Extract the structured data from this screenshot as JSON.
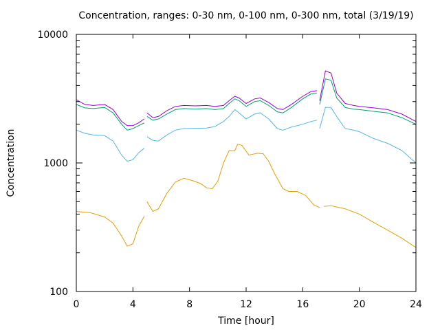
{
  "chart_data": {
    "type": "line",
    "title": "Concentration, ranges: 0-30 nm, 0-100 nm, 0-300 nm, total (3/19/19)",
    "xlabel": "Time [hour]",
    "ylabel": "Concentration",
    "xlim": [
      0,
      24
    ],
    "ylim": [
      100,
      10000
    ],
    "yscale": "log",
    "grid": false,
    "xticks": [
      0,
      4,
      8,
      12,
      16,
      20,
      24
    ],
    "xtick_labels": [
      "0",
      "4",
      "8",
      "12",
      "16",
      "20",
      "24"
    ],
    "yticks": [
      100,
      1000,
      10000
    ],
    "ytick_labels": [
      "100",
      "1000",
      "10000"
    ],
    "series": [
      {
        "color": "#e69f00",
        "segments": [
          [
            [
              0,
              420
            ],
            [
              1,
              410
            ],
            [
              2,
              380
            ],
            [
              2.6,
              340
            ],
            [
              3.2,
              270
            ],
            [
              3.6,
              225
            ],
            [
              4,
              235
            ],
            [
              4.4,
              320
            ],
            [
              4.8,
              385
            ]
          ],
          [
            [
              5,
              500
            ],
            [
              5.4,
              420
            ],
            [
              5.8,
              440
            ],
            [
              6.4,
              580
            ],
            [
              7,
              710
            ],
            [
              7.6,
              760
            ],
            [
              8.2,
              730
            ],
            [
              8.8,
              690
            ],
            [
              9.2,
              640
            ],
            [
              9.6,
              630
            ],
            [
              10,
              720
            ],
            [
              10.4,
              1000
            ],
            [
              10.8,
              1250
            ],
            [
              11.2,
              1240
            ],
            [
              11.4,
              1400
            ],
            [
              11.7,
              1370
            ],
            [
              12.2,
              1150
            ],
            [
              12.8,
              1190
            ],
            [
              13.2,
              1180
            ],
            [
              13.6,
              1030
            ],
            [
              14,
              830
            ],
            [
              14.6,
              630
            ],
            [
              15,
              600
            ],
            [
              15.6,
              600
            ],
            [
              16.2,
              560
            ],
            [
              16.8,
              470
            ],
            [
              17.2,
              450
            ]
          ],
          [
            [
              17.5,
              460
            ],
            [
              18,
              465
            ],
            [
              19,
              440
            ],
            [
              20,
              400
            ],
            [
              21,
              345
            ],
            [
              22,
              300
            ],
            [
              23,
              260
            ],
            [
              24,
              220
            ]
          ]
        ]
      },
      {
        "color": "#56b4e9",
        "segments": [
          [
            [
              0,
              1800
            ],
            [
              0.6,
              1700
            ],
            [
              1.2,
              1650
            ],
            [
              2,
              1630
            ],
            [
              2.6,
              1480
            ],
            [
              3.2,
              1150
            ],
            [
              3.6,
              1030
            ],
            [
              4,
              1060
            ],
            [
              4.4,
              1200
            ],
            [
              4.8,
              1300
            ]
          ],
          [
            [
              5,
              1600
            ],
            [
              5.4,
              1500
            ],
            [
              5.8,
              1480
            ],
            [
              6.4,
              1650
            ],
            [
              7,
              1800
            ],
            [
              7.6,
              1850
            ],
            [
              8.4,
              1860
            ],
            [
              9.2,
              1870
            ],
            [
              9.8,
              1920
            ],
            [
              10.4,
              2100
            ],
            [
              10.8,
              2300
            ],
            [
              11.2,
              2600
            ],
            [
              11.5,
              2450
            ],
            [
              12,
              2200
            ],
            [
              12.6,
              2400
            ],
            [
              13,
              2450
            ],
            [
              13.6,
              2200
            ],
            [
              14.2,
              1850
            ],
            [
              14.6,
              1800
            ],
            [
              15.2,
              1900
            ],
            [
              16,
              2000
            ],
            [
              16.6,
              2100
            ],
            [
              17,
              2150
            ]
          ],
          [
            [
              17.2,
              1850
            ],
            [
              17.6,
              2700
            ],
            [
              18,
              2700
            ],
            [
              18.4,
              2300
            ],
            [
              19,
              1850
            ],
            [
              19.6,
              1800
            ],
            [
              20,
              1750
            ],
            [
              21,
              1550
            ],
            [
              22,
              1420
            ],
            [
              23,
              1250
            ],
            [
              24,
              1000
            ]
          ]
        ]
      },
      {
        "color": "#009e73",
        "segments": [
          [
            [
              0,
              2850
            ],
            [
              0.6,
              2680
            ],
            [
              1.2,
              2650
            ],
            [
              2,
              2700
            ],
            [
              2.6,
              2450
            ],
            [
              3.2,
              2000
            ],
            [
              3.6,
              1800
            ],
            [
              4,
              1850
            ],
            [
              4.4,
              1950
            ],
            [
              4.8,
              2050
            ]
          ],
          [
            [
              5,
              2300
            ],
            [
              5.4,
              2150
            ],
            [
              5.8,
              2200
            ],
            [
              6.4,
              2400
            ],
            [
              7,
              2600
            ],
            [
              7.6,
              2650
            ],
            [
              8.4,
              2620
            ],
            [
              9.2,
              2650
            ],
            [
              9.8,
              2600
            ],
            [
              10.4,
              2650
            ],
            [
              10.8,
              2900
            ],
            [
              11.2,
              3150
            ],
            [
              11.5,
              3050
            ],
            [
              12,
              2750
            ],
            [
              12.6,
              3000
            ],
            [
              13,
              3050
            ],
            [
              13.6,
              2800
            ],
            [
              14.2,
              2500
            ],
            [
              14.6,
              2450
            ],
            [
              15.2,
              2700
            ],
            [
              16,
              3150
            ],
            [
              16.6,
              3450
            ],
            [
              17,
              3500
            ]
          ],
          [
            [
              17.2,
              2850
            ],
            [
              17.6,
              4500
            ],
            [
              18,
              4400
            ],
            [
              18.4,
              3200
            ],
            [
              19,
              2700
            ],
            [
              19.6,
              2620
            ],
            [
              20,
              2600
            ],
            [
              21,
              2520
            ],
            [
              22,
              2450
            ],
            [
              23,
              2250
            ],
            [
              24,
              2000
            ]
          ]
        ]
      },
      {
        "color": "#9400d3",
        "segments": [
          [
            [
              0,
              3100
            ],
            [
              0.6,
              2850
            ],
            [
              1.2,
              2800
            ],
            [
              2,
              2850
            ],
            [
              2.6,
              2600
            ],
            [
              3.2,
              2100
            ],
            [
              3.6,
              1950
            ],
            [
              4,
              1950
            ],
            [
              4.4,
              2050
            ],
            [
              4.8,
              2200
            ]
          ],
          [
            [
              5,
              2450
            ],
            [
              5.4,
              2250
            ],
            [
              5.8,
              2300
            ],
            [
              6.4,
              2550
            ],
            [
              7,
              2750
            ],
            [
              7.6,
              2800
            ],
            [
              8.4,
              2780
            ],
            [
              9.2,
              2800
            ],
            [
              9.8,
              2750
            ],
            [
              10.4,
              2800
            ],
            [
              10.8,
              3050
            ],
            [
              11.2,
              3300
            ],
            [
              11.5,
              3200
            ],
            [
              12,
              2900
            ],
            [
              12.6,
              3150
            ],
            [
              13,
              3200
            ],
            [
              13.6,
              2950
            ],
            [
              14.2,
              2650
            ],
            [
              14.6,
              2600
            ],
            [
              15.2,
              2850
            ],
            [
              16,
              3300
            ],
            [
              16.6,
              3600
            ],
            [
              17,
              3650
            ]
          ],
          [
            [
              17.2,
              3050
            ],
            [
              17.6,
              5200
            ],
            [
              18,
              5000
            ],
            [
              18.4,
              3500
            ],
            [
              19,
              2900
            ],
            [
              19.6,
              2800
            ],
            [
              20,
              2750
            ],
            [
              21,
              2680
            ],
            [
              22,
              2600
            ],
            [
              23,
              2400
            ],
            [
              24,
              2100
            ]
          ]
        ]
      }
    ]
  }
}
